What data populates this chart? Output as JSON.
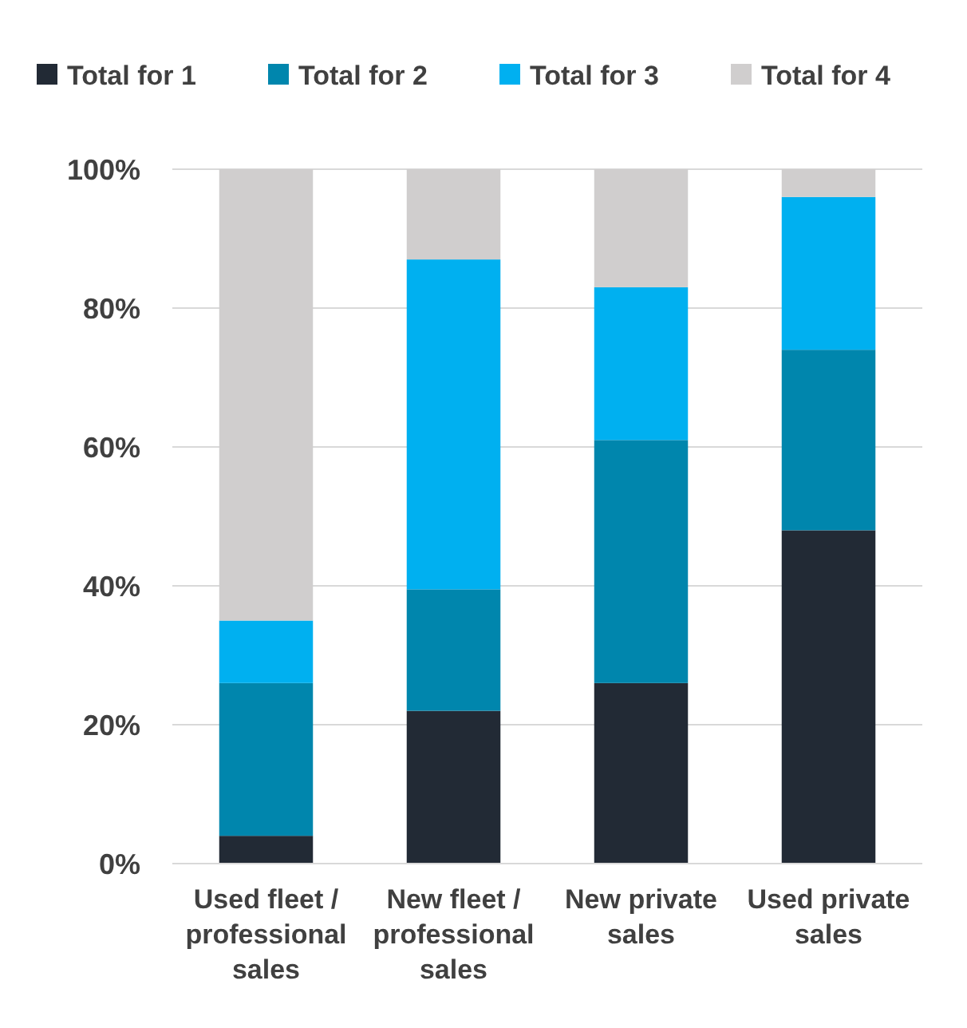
{
  "chart_data": {
    "type": "bar",
    "stacked": true,
    "categories": [
      "Used fleet / professional sales",
      "New fleet / professional sales",
      "New private sales",
      "Used private sales"
    ],
    "series": [
      {
        "name": "Total for 1",
        "color": "#222a35",
        "values": [
          4,
          22,
          26,
          48
        ]
      },
      {
        "name": "Total for 2",
        "color": "#0086ad",
        "values": [
          22,
          17.5,
          35,
          26
        ]
      },
      {
        "name": "Total for 3",
        "color": "#00b0f0",
        "values": [
          9,
          47.5,
          22,
          22
        ]
      },
      {
        "name": "Total for 4",
        "color": "#d0cece",
        "values": [
          65,
          13,
          17,
          4
        ]
      }
    ],
    "ylim": [
      0,
      100
    ],
    "yticks": [
      {
        "value": 0,
        "label": "0%"
      },
      {
        "value": 20,
        "label": "20%"
      },
      {
        "value": 40,
        "label": "40%"
      },
      {
        "value": 60,
        "label": "60%"
      },
      {
        "value": 80,
        "label": "80%"
      },
      {
        "value": 100,
        "label": "100%"
      }
    ],
    "grid": "y",
    "legend": "top"
  }
}
